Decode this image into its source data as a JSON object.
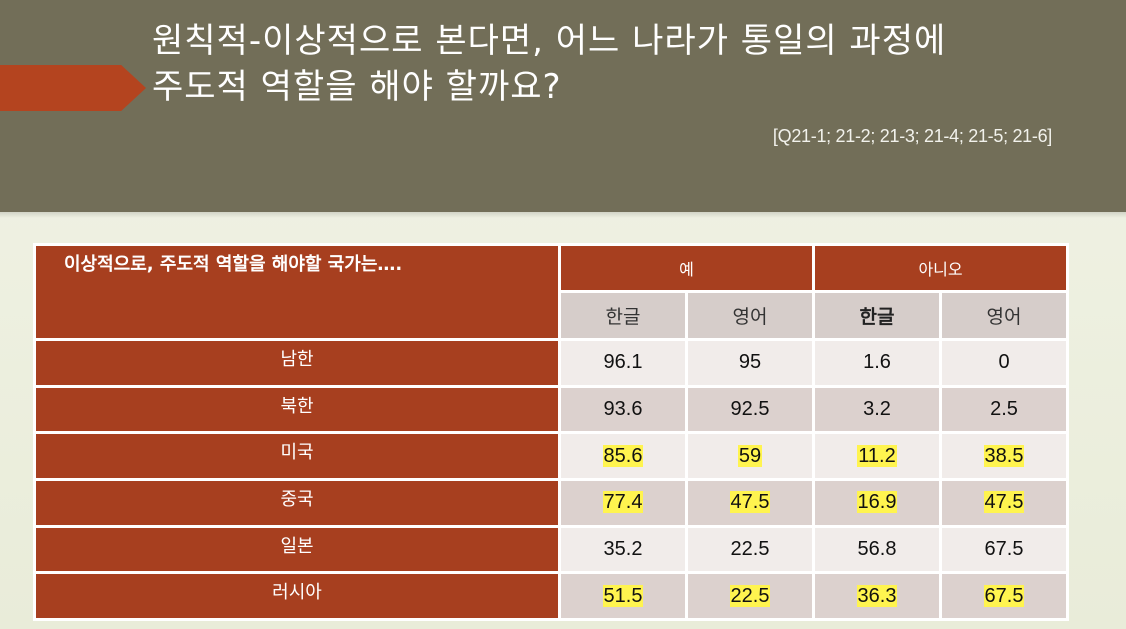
{
  "slide": {
    "title_line1": "원칙적-이상적으로 본다면, 어느 나라가 통일의 과정에",
    "title_line2": "주도적 역할을 해야 할까요?",
    "source_ref": "[Q21-1; 21-2; 21-3; 21-4; 21-5; 21-6]"
  },
  "colors": {
    "header_band": "#726e58",
    "accent_red": "#a73f1f",
    "arrow_tab": "#b4441f",
    "highlight": "#fff44f",
    "row_light": "#f1ecea",
    "row_dark": "#dcd1ce"
  },
  "table": {
    "corner_label": "이상적으로, 주도적 역할을 해야할 국가는….",
    "group_yes": "예",
    "group_no": "아니오",
    "sub_headers": [
      "한글",
      "영어",
      "한글",
      "영어"
    ],
    "rows": [
      {
        "label": "남한",
        "values": [
          "96.1",
          "95",
          "1.6",
          "0"
        ],
        "highlighted": false
      },
      {
        "label": "북한",
        "values": [
          "93.6",
          "92.5",
          "3.2",
          "2.5"
        ],
        "highlighted": false
      },
      {
        "label": "미국",
        "values": [
          "85.6",
          "59",
          "11.2",
          "38.5"
        ],
        "highlighted": true
      },
      {
        "label": "중국",
        "values": [
          "77.4",
          "47.5",
          "16.9",
          "47.5"
        ],
        "highlighted": true
      },
      {
        "label": "일본",
        "values": [
          "35.2",
          "22.5",
          "56.8",
          "67.5"
        ],
        "highlighted": false
      },
      {
        "label": "러시아",
        "values": [
          "51.5",
          "22.5",
          "36.3",
          "67.5"
        ],
        "highlighted": true
      }
    ]
  }
}
